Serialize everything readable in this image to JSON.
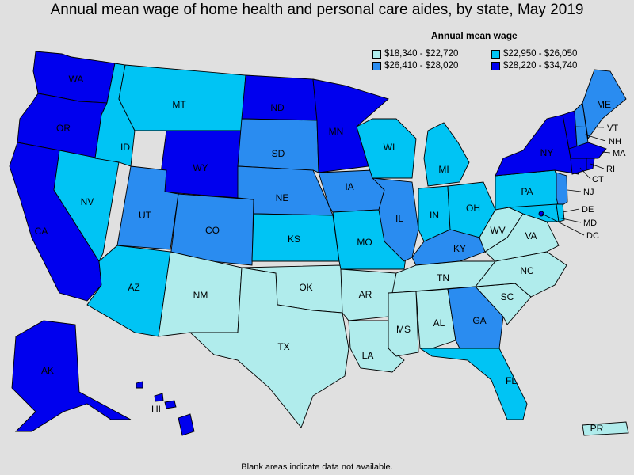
{
  "title": "Annual mean wage of home health and personal care aides, by state, May 2019",
  "legend": {
    "title": "Annual mean wage",
    "items": [
      {
        "label": "$18,340 - $22,720",
        "color": "#b0ecec"
      },
      {
        "label": "$22,950 - $26,050",
        "color": "#00c4f4"
      },
      {
        "label": "$26,410 - $28,020",
        "color": "#2a8cf0"
      },
      {
        "label": "$28,220 - $34,740",
        "color": "#0000ee"
      }
    ]
  },
  "footer": "Blank areas indicate data not available.",
  "states": {
    "WA": {
      "label": "WA",
      "tier": 3
    },
    "OR": {
      "label": "OR",
      "tier": 3
    },
    "CA": {
      "label": "CA",
      "tier": 3
    },
    "NV": {
      "label": "NV",
      "tier": 1
    },
    "ID": {
      "label": "ID",
      "tier": 1
    },
    "MT": {
      "label": "MT",
      "tier": 1
    },
    "WY": {
      "label": "WY",
      "tier": 3
    },
    "UT": {
      "label": "UT",
      "tier": 2
    },
    "CO": {
      "label": "CO",
      "tier": 2
    },
    "AZ": {
      "label": "AZ",
      "tier": 1
    },
    "NM": {
      "label": "NM",
      "tier": 0
    },
    "ND": {
      "label": "ND",
      "tier": 3
    },
    "SD": {
      "label": "SD",
      "tier": 2
    },
    "NE": {
      "label": "NE",
      "tier": 2
    },
    "KS": {
      "label": "KS",
      "tier": 1
    },
    "OK": {
      "label": "OK",
      "tier": 0
    },
    "TX": {
      "label": "TX",
      "tier": 0
    },
    "MN": {
      "label": "MN",
      "tier": 3
    },
    "IA": {
      "label": "IA",
      "tier": 2
    },
    "MO": {
      "label": "MO",
      "tier": 1
    },
    "AR": {
      "label": "AR",
      "tier": 0
    },
    "LA": {
      "label": "LA",
      "tier": 0
    },
    "WI": {
      "label": "WI",
      "tier": 1
    },
    "IL": {
      "label": "IL",
      "tier": 2
    },
    "MI": {
      "label": "MI",
      "tier": 1
    },
    "IN": {
      "label": "IN",
      "tier": 1
    },
    "OH": {
      "label": "OH",
      "tier": 1
    },
    "KY": {
      "label": "KY",
      "tier": 2
    },
    "TN": {
      "label": "TN",
      "tier": 0
    },
    "MS": {
      "label": "MS",
      "tier": 0
    },
    "AL": {
      "label": "AL",
      "tier": 0
    },
    "GA": {
      "label": "GA",
      "tier": 2
    },
    "FL": {
      "label": "FL",
      "tier": 1
    },
    "SC": {
      "label": "SC",
      "tier": 0
    },
    "NC": {
      "label": "NC",
      "tier": 0
    },
    "VA": {
      "label": "VA",
      "tier": 0
    },
    "WV": {
      "label": "WV",
      "tier": 0
    },
    "PA": {
      "label": "PA",
      "tier": 1
    },
    "NY": {
      "label": "NY",
      "tier": 3
    },
    "ME": {
      "label": "ME",
      "tier": 2
    },
    "VT": {
      "label": "VT",
      "tier": 3
    },
    "NH": {
      "label": "NH",
      "tier": 2
    },
    "MA": {
      "label": "MA",
      "tier": 3
    },
    "RI": {
      "label": "RI",
      "tier": 3
    },
    "CT": {
      "label": "CT",
      "tier": 3
    },
    "NJ": {
      "label": "NJ",
      "tier": 2
    },
    "DE": {
      "label": "DE",
      "tier": 1
    },
    "MD": {
      "label": "MD",
      "tier": 1
    },
    "DC": {
      "label": "DC",
      "tier": 3
    },
    "AK": {
      "label": "AK",
      "tier": 3
    },
    "HI": {
      "label": "HI",
      "tier": 3
    },
    "PR": {
      "label": "PR",
      "tier": 0
    }
  }
}
